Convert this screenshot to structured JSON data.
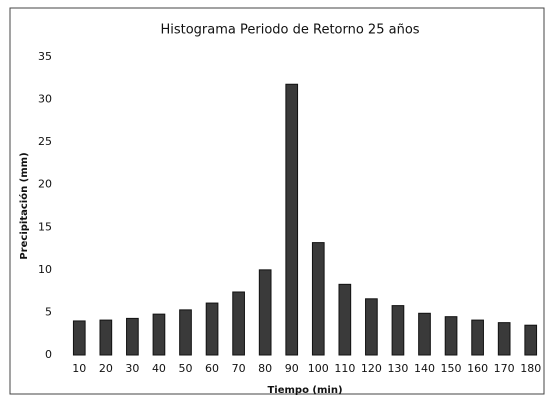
{
  "chart_data": {
    "type": "bar",
    "title": "Histograma Periodo de Retorno 25 años",
    "x_label": "Tiempo (min)",
    "y_label": "Precipitación (mm)",
    "categories": [
      10,
      20,
      30,
      40,
      50,
      60,
      70,
      80,
      90,
      100,
      110,
      120,
      130,
      140,
      150,
      160,
      170,
      180
    ],
    "values": [
      4.0,
      4.1,
      4.3,
      4.8,
      5.3,
      6.1,
      7.4,
      10.0,
      31.8,
      13.2,
      8.3,
      6.6,
      5.8,
      4.9,
      4.5,
      4.1,
      3.8,
      3.5
    ],
    "color": "#3a3a3a",
    "ylim": [
      0,
      35
    ],
    "yticks": [
      0,
      5,
      10,
      15,
      20,
      25,
      30,
      35
    ],
    "grid": true
  }
}
